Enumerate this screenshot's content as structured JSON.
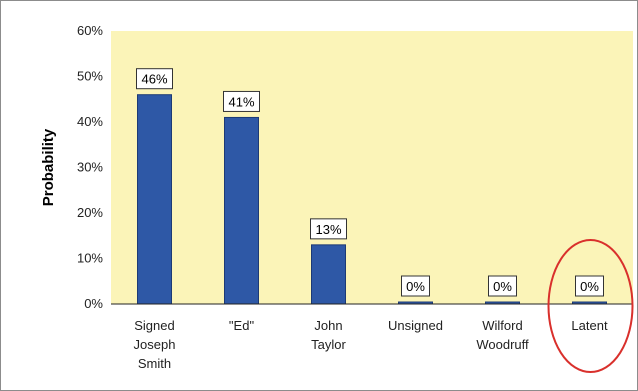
{
  "chart_data": {
    "type": "bar",
    "title": "",
    "xlabel": "",
    "ylabel": "Probability",
    "ylim": [
      0,
      60
    ],
    "yticks": [
      "0%",
      "10%",
      "20%",
      "30%",
      "40%",
      "50%",
      "60%"
    ],
    "categories": [
      [
        "Signed",
        "Joseph",
        "Smith"
      ],
      [
        "\"Ed\""
      ],
      [
        "John",
        "Taylor"
      ],
      [
        "Unsigned"
      ],
      [
        "Wilford",
        "Woodruff"
      ],
      [
        "Latent"
      ]
    ],
    "values": [
      46,
      41,
      13,
      0,
      0,
      0
    ],
    "data_labels": [
      "46%",
      "41%",
      "13%",
      "0%",
      "0%",
      "0%"
    ],
    "highlighted_category_index": 5,
    "colors": {
      "plot_background": "#fbf4b8",
      "bar": "#2e58a6",
      "bar_border": "#1c3a75",
      "highlight_circle": "#d9302c",
      "gridline": "#222222"
    },
    "grid": false,
    "legend": "none"
  }
}
